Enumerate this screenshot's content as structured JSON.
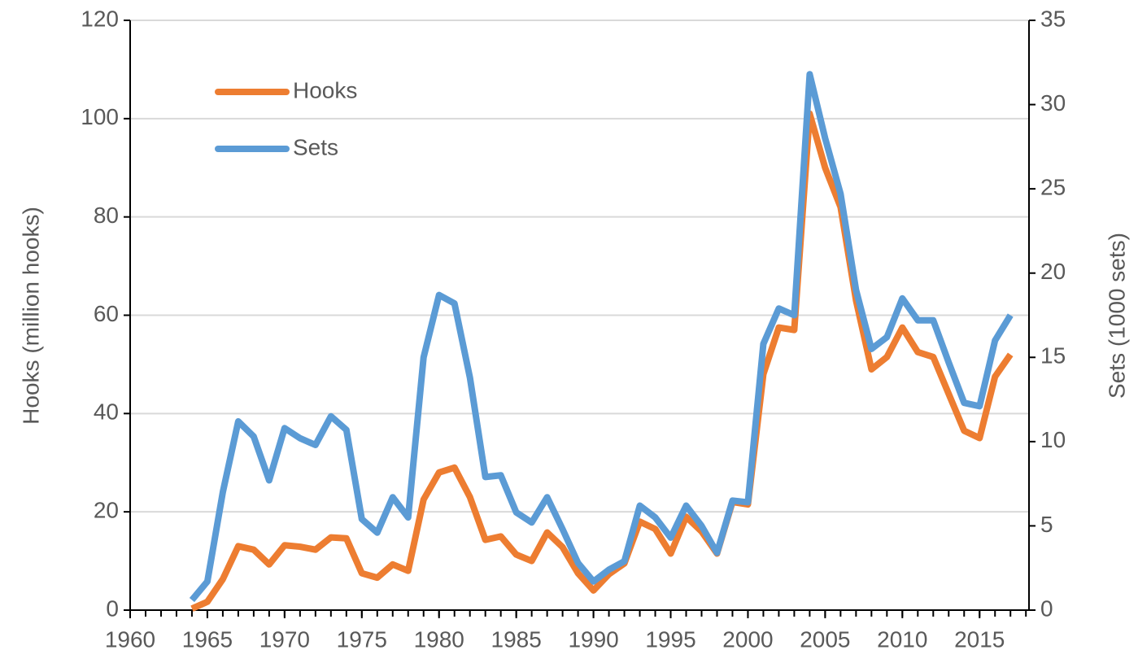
{
  "chart_data": {
    "type": "line",
    "x": [
      1964,
      1965,
      1966,
      1967,
      1968,
      1969,
      1970,
      1971,
      1972,
      1973,
      1974,
      1975,
      1976,
      1977,
      1978,
      1979,
      1980,
      1981,
      1982,
      1983,
      1984,
      1985,
      1986,
      1987,
      1988,
      1989,
      1990,
      1991,
      1992,
      1993,
      1994,
      1995,
      1996,
      1997,
      1998,
      1999,
      2000,
      2001,
      2002,
      2003,
      2004,
      2005,
      2006,
      2007,
      2008,
      2009,
      2010,
      2011,
      2012,
      2013,
      2014,
      2015,
      2016,
      2017
    ],
    "series": [
      {
        "name": "Hooks",
        "color": "#ed7d31",
        "axis": "y",
        "values": [
          0.3,
          1.7,
          6.3,
          13,
          12.3,
          9.3,
          13.2,
          12.9,
          12.3,
          14.8,
          14.6,
          7.5,
          6.6,
          9.3,
          8,
          22.5,
          28,
          29,
          23,
          14.3,
          15,
          11.3,
          10,
          15.8,
          12.8,
          7.5,
          4,
          7.3,
          9.5,
          18,
          16.5,
          11.5,
          19,
          16,
          11.5,
          22,
          21.5,
          48,
          57.5,
          57,
          101,
          90,
          82,
          63,
          49,
          51.5,
          57.5,
          52.5,
          51.5,
          44,
          36.5,
          35,
          47.5,
          52
        ]
      },
      {
        "name": "Sets",
        "color": "#5b9bd5",
        "axis": "y2",
        "values": [
          0.6,
          1.7,
          7,
          11.2,
          10.3,
          7.7,
          10.8,
          10.2,
          9.8,
          11.5,
          10.7,
          5.4,
          4.6,
          6.7,
          5.5,
          15,
          18.7,
          18.2,
          13.8,
          7.9,
          8,
          5.8,
          5.2,
          6.7,
          4.8,
          2.8,
          1.7,
          2.4,
          2.9,
          6.2,
          5.5,
          4.3,
          6.2,
          5,
          3.4,
          6.5,
          6.4,
          15.8,
          17.9,
          17.5,
          31.8,
          28,
          24.7,
          19,
          15.5,
          16.2,
          18.5,
          17.2,
          17.2,
          14.7,
          12.3,
          12.1,
          16,
          17.5
        ]
      }
    ],
    "y_label": "Hooks (million hooks)",
    "y2_label": "Sets (1000 sets)",
    "xlim": [
      1960,
      2018.2
    ],
    "xticks": [
      1960,
      1965,
      1970,
      1975,
      1980,
      1985,
      1990,
      1995,
      2000,
      2005,
      2010,
      2015
    ],
    "ylim": [
      0,
      120
    ],
    "yticks": [
      0,
      20,
      40,
      60,
      80,
      100,
      120
    ],
    "y2lim": [
      0,
      35
    ],
    "y2ticks": [
      0,
      5,
      10,
      15,
      20,
      25,
      30,
      35
    ],
    "grid": true,
    "legend": "upper left"
  }
}
